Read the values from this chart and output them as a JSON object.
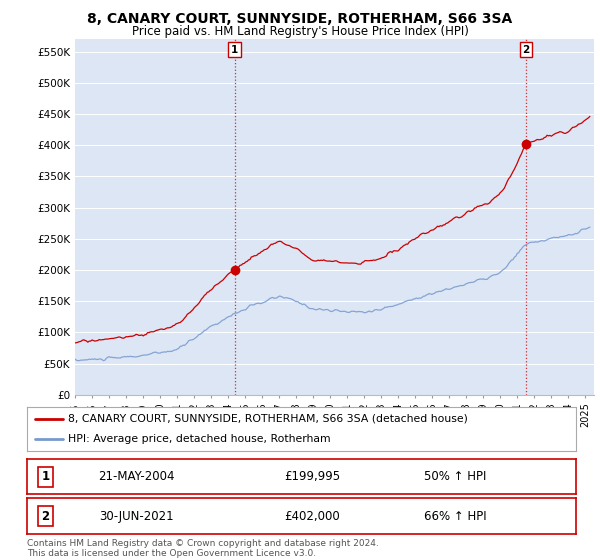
{
  "title": "8, CANARY COURT, SUNNYSIDE, ROTHERHAM, S66 3SA",
  "subtitle": "Price paid vs. HM Land Registry's House Price Index (HPI)",
  "ylabel_ticks": [
    "£0",
    "£50K",
    "£100K",
    "£150K",
    "£200K",
    "£250K",
    "£300K",
    "£350K",
    "£400K",
    "£450K",
    "£500K",
    "£550K"
  ],
  "ytick_values": [
    0,
    50000,
    100000,
    150000,
    200000,
    250000,
    300000,
    350000,
    400000,
    450000,
    500000,
    550000
  ],
  "ylim": [
    0,
    570000
  ],
  "xlim_start": 1995.0,
  "xlim_end": 2025.5,
  "red_line_color": "#cc0000",
  "blue_line_color": "#7799cc",
  "sale1_x": 2004.385,
  "sale1_y": 199995,
  "sale1_label": "1",
  "sale2_x": 2021.5,
  "sale2_y": 402000,
  "sale2_label": "2",
  "vline_color": "#cc0000",
  "vline_style": ":",
  "legend_line1": "8, CANARY COURT, SUNNYSIDE, ROTHERHAM, S66 3SA (detached house)",
  "legend_line2": "HPI: Average price, detached house, Rotherham",
  "table_row1_num": "1",
  "table_row1_date": "21-MAY-2004",
  "table_row1_price": "£199,995",
  "table_row1_hpi": "50% ↑ HPI",
  "table_row2_num": "2",
  "table_row2_date": "30-JUN-2021",
  "table_row2_price": "£402,000",
  "table_row2_hpi": "66% ↑ HPI",
  "footer": "Contains HM Land Registry data © Crown copyright and database right 2024.\nThis data is licensed under the Open Government Licence v3.0.",
  "background_color": "#ffffff",
  "plot_bg_color": "#dce6f5"
}
